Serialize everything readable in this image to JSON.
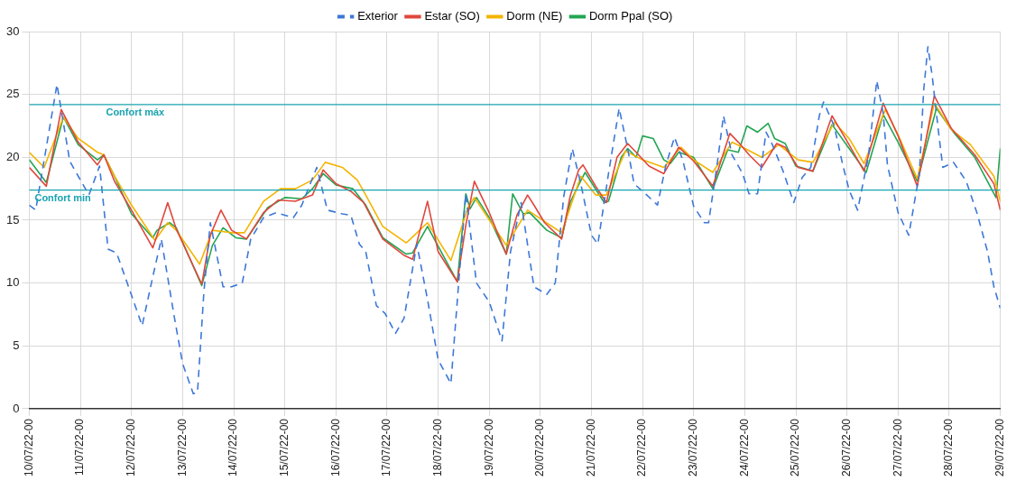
{
  "chart_data": {
    "type": "line",
    "xlim": [
      "--07-10T00:00",
      "--07-29T00:00"
    ],
    "xticks": [
      {
        "value": "--07-10T00:00",
        "label": "10/07/22-00"
      },
      {
        "value": "--07-11T00:00",
        "label": "11/07/22-00"
      },
      {
        "value": "--07-12T00:00",
        "label": "12/07/22-00"
      },
      {
        "value": "--07-13T00:00",
        "label": "13/07/22-00"
      },
      {
        "value": "--07-14T00:00",
        "label": "14/07/22-00"
      },
      {
        "value": "--07-15T00:00",
        "label": "15/07/22-00"
      },
      {
        "value": "--07-16T00:00",
        "label": "16/07/22-00"
      },
      {
        "value": "--07-17T00:00",
        "label": "17/07/22-00"
      },
      {
        "value": "--07-18T00:00",
        "label": "18/07/22-00"
      },
      {
        "value": "--07-19T00:00",
        "label": "19/07/22-00"
      },
      {
        "value": "--07-20T00:00",
        "label": "20/07/22-00"
      },
      {
        "value": "--07-21T00:00",
        "label": "21/07/22-00"
      },
      {
        "value": "--07-22T00:00",
        "label": "22/07/22-00"
      },
      {
        "value": "--07-23T00:00",
        "label": "23/07/22-00"
      },
      {
        "value": "--07-24T00:00",
        "label": "24/07/22-00"
      },
      {
        "value": "--07-25T00:00",
        "label": "25/07/22-00"
      },
      {
        "value": "--07-26T00:00",
        "label": "26/07/22-00"
      },
      {
        "value": "--07-27T00:00",
        "label": "27/07/22-00"
      },
      {
        "value": "--07-28T00:00",
        "label": "28/07/22-00"
      },
      {
        "value": "--07-29T00:00",
        "label": "29/07/22-00"
      }
    ],
    "ylim": [
      0,
      30
    ],
    "yticks": [
      0,
      5,
      10,
      15,
      20,
      25,
      30
    ],
    "grid": true,
    "legend": "top",
    "marker": "none",
    "ref_lines": [
      {
        "axis": "y",
        "value": 24.2,
        "label": "Confort máx",
        "color": "#1aa3b0"
      },
      {
        "axis": "y",
        "value": 17.4,
        "label": "Confort min",
        "color": "#1aa3b0"
      }
    ],
    "series": [
      {
        "name": "Exterior",
        "color": "#3d78d8",
        "line_style": "dashed",
        "x": [
          "--07-10T00:00",
          "--07-10T03:00",
          "--07-10T13:00",
          "--07-10T19:00",
          "--07-11T04:00",
          "--07-11T09:00",
          "--07-11T13:00",
          "--07-11T17:00",
          "--07-11T22:00",
          "--07-12T05:00",
          "--07-12T10:00",
          "--07-12T14:00",
          "--07-12T20:00",
          "--07-13T00:00",
          "--07-13T05:00",
          "--07-13T07:00",
          "--07-13T10:00",
          "--07-13T13:00",
          "--07-13T19:00",
          "--07-13T23:00",
          "--07-14T04:00",
          "--07-14T08:00",
          "--07-14T14:00",
          "--07-14T20:00",
          "--07-15T04:00",
          "--07-15T08:00",
          "--07-15T15:00",
          "--07-15T20:00",
          "--07-16T03:00",
          "--07-16T07:00",
          "--07-16T11:00",
          "--07-16T14:00",
          "--07-16T19:00",
          "--07-16T23:00",
          "--07-17T04:00",
          "--07-17T08:00",
          "--07-17T14:00",
          "--07-17T19:00",
          "--07-18T00:00",
          "--07-18T06:00",
          "--07-18T10:00",
          "--07-18T13:00",
          "--07-18T18:00",
          "--07-19T00:00",
          "--07-19T06:00",
          "--07-19T10:00",
          "--07-19T15:00",
          "--07-19T21:00",
          "--07-20T03:00",
          "--07-20T07:00",
          "--07-20T11:00",
          "--07-20T15:00",
          "--07-20T19:00",
          "--07-21T00:00",
          "--07-21T03:00",
          "--07-21T08:00",
          "--07-21T13:00",
          "--07-21T17:00",
          "--07-21T20:00",
          "--07-22T02:00",
          "--07-22T07:00",
          "--07-22T11:00",
          "--07-22T15:00",
          "--07-22T19:00",
          "--07-23T00:00",
          "--07-23T05:00",
          "--07-23T07:00",
          "--07-23T11:00",
          "--07-23T14:00",
          "--07-23T18:00",
          "--07-23T23:00",
          "--07-24T02:00",
          "--07-24T06:00",
          "--07-24T10:00",
          "--07-24T13:00",
          "--07-24T18:00",
          "--07-24T23:00",
          "--07-25T03:00",
          "--07-25T07:00",
          "--07-25T11:00",
          "--07-25T13:00",
          "--07-25T18:00",
          "--07-25T22:00",
          "--07-26T01:00",
          "--07-26T05:00",
          "--07-26T10:00",
          "--07-26T14:00",
          "--07-26T17:00",
          "--07-26T19:00",
          "--07-27T00:00",
          "--07-27T05:00",
          "--07-27T10:00",
          "--07-27T12:00",
          "--07-27T14:00",
          "--07-27T16:00",
          "--07-27T19:00",
          "--07-27T21:00",
          "--07-28T02:00",
          "--07-28T08:00",
          "--07-28T13:00",
          "--07-28T18:00",
          "--07-28T21:00",
          "--07-29T00:00"
        ],
        "values": [
          16.2,
          15.8,
          25.8,
          19.7,
          17,
          19.3,
          12.7,
          12.4,
          10,
          6.6,
          10.5,
          13.5,
          7.4,
          3.6,
          1.2,
          1.3,
          9.3,
          14.8,
          9.7,
          9.7,
          10,
          13.5,
          15.2,
          15.6,
          15.2,
          16.2,
          19.2,
          15.8,
          15.5,
          15.4,
          13.1,
          12.5,
          8.2,
          7.6,
          6,
          7.2,
          13.1,
          8.7,
          3.9,
          2,
          10.8,
          17.1,
          10,
          8.5,
          5.4,
          12.5,
          16.4,
          9.7,
          9.1,
          10,
          16.9,
          20.7,
          17.9,
          13.8,
          13.1,
          18.7,
          23.9,
          20.7,
          17.9,
          17,
          16.2,
          19.4,
          21.6,
          19.7,
          16.1,
          14.8,
          14.8,
          19.4,
          23.3,
          20.2,
          18.7,
          17.1,
          17.1,
          22,
          21,
          18.9,
          16.4,
          18.4,
          19.2,
          23.3,
          24.4,
          22.5,
          19.4,
          17.4,
          15.8,
          20,
          26.1,
          23.5,
          19.4,
          15.6,
          13.8,
          18.7,
          25.3,
          28.8,
          26.5,
          22,
          19.2,
          19.6,
          18.1,
          15.6,
          12.5,
          9.7,
          8
        ]
      },
      {
        "name": "Estar (SO)",
        "color": "#e0473c",
        "x": [
          "--07-10T00:00",
          "--07-10T08:00",
          "--07-10T15:00",
          "--07-10T23:00",
          "--07-11T08:00",
          "--07-11T11:00",
          "--07-11T16:00",
          "--07-12T00:00",
          "--07-12T10:00",
          "--07-12T13:00",
          "--07-12T17:00",
          "--07-12T21:00",
          "--07-13T09:00",
          "--07-13T13:00",
          "--07-13T18:00",
          "--07-13T23:00",
          "--07-14T06:00",
          "--07-14T14:00",
          "--07-14T21:00",
          "--07-15T05:00",
          "--07-15T13:00",
          "--07-15T18:00",
          "--07-16T00:00",
          "--07-16T07:00",
          "--07-16T13:00",
          "--07-16T22:00",
          "--07-17T08:00",
          "--07-17T12:00",
          "--07-17T19:00",
          "--07-18T00:00",
          "--07-18T09:00",
          "--07-18T13:00",
          "--07-18T17:00",
          "--07-19T00:00",
          "--07-19T08:00",
          "--07-19T13:00",
          "--07-19T18:00",
          "--07-19T21:00",
          "--07-20T02:00",
          "--07-20T10:00",
          "--07-20T14:00",
          "--07-20T18:00",
          "--07-20T20:00",
          "--07-21T02:00",
          "--07-21T07:00",
          "--07-21T12:00",
          "--07-21T17:00",
          "--07-21T21:00",
          "--07-22T03:00",
          "--07-22T10:00",
          "--07-22T17:00",
          "--07-23T00:00",
          "--07-23T09:00",
          "--07-23T17:00",
          "--07-23T21:00",
          "--07-24T02:00",
          "--07-24T08:00",
          "--07-24T15:00",
          "--07-24T19:00",
          "--07-25T01:00",
          "--07-25T08:00",
          "--07-25T17:00",
          "--07-26T01:00",
          "--07-26T08:00",
          "--07-26T17:00",
          "--07-27T00:00",
          "--07-27T09:00",
          "--07-27T17:00",
          "--07-28T01:00",
          "--07-28T12:00",
          "--07-28T21:00",
          "--07-29T00:00"
        ],
        "values": [
          19.2,
          17.7,
          23.8,
          21.2,
          19.4,
          20.2,
          18.1,
          15.8,
          12.8,
          14.3,
          16.4,
          14.3,
          9.9,
          13.8,
          15.8,
          14.2,
          13.5,
          15.6,
          16.6,
          16.5,
          17,
          19,
          17.9,
          17.3,
          16.4,
          13.5,
          12.2,
          11.9,
          16.5,
          12.5,
          10.1,
          14.6,
          18.1,
          15.6,
          12.3,
          15.4,
          17,
          16.2,
          14.8,
          13.5,
          16.9,
          19,
          19.4,
          17.7,
          16.4,
          20,
          21.1,
          20.4,
          19.3,
          18.7,
          20.8,
          19.7,
          17.7,
          21.9,
          21.2,
          20.2,
          19.2,
          21.1,
          20.8,
          19.2,
          18.9,
          23.3,
          21,
          18.9,
          24.3,
          21.7,
          17.7,
          24.9,
          22.3,
          20.2,
          17.9,
          15.8
        ]
      },
      {
        "name": "Dorm (NE)",
        "color": "#f4b400",
        "x": [
          "--07-10T00:00",
          "--07-10T07:00",
          "--07-10T16:00",
          "--07-10T23:00",
          "--07-11T08:00",
          "--07-11T11:00",
          "--07-11T16:00",
          "--07-12T00:00",
          "--07-12T11:00",
          "--07-12T17:00",
          "--07-12T21:00",
          "--07-13T08:00",
          "--07-13T14:00",
          "--07-13T23:00",
          "--07-14T05:00",
          "--07-14T14:00",
          "--07-14T22:00",
          "--07-15T05:00",
          "--07-15T13:00",
          "--07-15T19:00",
          "--07-16T03:00",
          "--07-16T10:00",
          "--07-16T14:00",
          "--07-16T22:00",
          "--07-17T09:00",
          "--07-17T11:00",
          "--07-17T19:00",
          "--07-18T06:00",
          "--07-18T14:00",
          "--07-18T17:00",
          "--07-19T08:00",
          "--07-19T18:00",
          "--07-20T10:00",
          "--07-20T15:00",
          "--07-20T19:00",
          "--07-21T02:00",
          "--07-21T07:00",
          "--07-21T16:00",
          "--07-22T00:00",
          "--07-22T10:00",
          "--07-22T18:00",
          "--07-23T00:00",
          "--07-23T09:00",
          "--07-23T18:00",
          "--07-23T23:00",
          "--07-24T08:00",
          "--07-24T16:00",
          "--07-25T01:00",
          "--07-25T08:00",
          "--07-25T18:00",
          "--07-26T01:00",
          "--07-26T08:00",
          "--07-26T18:00",
          "--07-27T00:00",
          "--07-27T09:00",
          "--07-27T17:00",
          "--07-28T01:00",
          "--07-28T10:00",
          "--07-28T21:00",
          "--07-29T00:00"
        ],
        "values": [
          20.4,
          19.2,
          23.2,
          21.5,
          20.4,
          20.2,
          18.5,
          16.2,
          13.4,
          14.8,
          14.2,
          11.5,
          14.2,
          14,
          14,
          16.5,
          17.5,
          17.5,
          18.2,
          19.6,
          19.2,
          18.2,
          17,
          14.5,
          13.2,
          13.5,
          14.8,
          11.8,
          16,
          16.8,
          13,
          15.8,
          14,
          16.5,
          18.5,
          17,
          17,
          20.5,
          19.8,
          19.2,
          20.8,
          19.8,
          18.8,
          21.2,
          20.8,
          20,
          21,
          19.8,
          19.6,
          22.8,
          21.5,
          19.5,
          23.8,
          21.8,
          18.3,
          24.3,
          22.2,
          21,
          18.5,
          16.5
        ]
      },
      {
        "name": "Dorm Ppal (SO)",
        "color": "#23a553",
        "x": [
          "--07-10T00:00",
          "--07-10T08:00",
          "--07-10T16:00",
          "--07-10T23:00",
          "--07-11T08:00",
          "--07-11T11:00",
          "--07-11T16:00",
          "--07-12T00:00",
          "--07-12T10:00",
          "--07-12T12:00",
          "--07-12T18:00",
          "--07-12T21:00",
          "--07-13T09:00",
          "--07-13T14:00",
          "--07-13T19:00",
          "--07-14T01:00",
          "--07-14T06:00",
          "--07-14T16:00",
          "--07-15T00:00",
          "--07-15T08:00",
          "--07-15T13:00",
          "--07-15T18:00",
          "--07-16T00:00",
          "--07-16T08:00",
          "--07-16T14:00",
          "--07-16T22:00",
          "--07-17T09:00",
          "--07-17T12:00",
          "--07-17T19:00",
          "--07-18T09:00",
          "--07-18T13:00",
          "--07-18T15:00",
          "--07-18T18:00",
          "--07-19T00:00",
          "--07-19T08:00",
          "--07-19T11:00",
          "--07-19T16:00",
          "--07-19T19:00",
          "--07-20T03:00",
          "--07-20T10:00",
          "--07-20T14:00",
          "--07-20T18:00",
          "--07-20T21:00",
          "--07-21T06:00",
          "--07-21T08:00",
          "--07-21T14:00",
          "--07-21T17:00",
          "--07-21T21:00",
          "--07-22T00:00",
          "--07-22T05:00",
          "--07-22T10:00",
          "--07-22T13:00",
          "--07-22T17:00",
          "--07-23T00:00",
          "--07-23T09:00",
          "--07-23T16:00",
          "--07-23T21:00",
          "--07-24T01:00",
          "--07-24T06:00",
          "--07-24T11:00",
          "--07-24T14:00",
          "--07-24T19:00",
          "--07-25T00:00",
          "--07-25T08:00",
          "--07-25T17:00",
          "--07-26T01:00",
          "--07-26T09:00",
          "--07-26T17:00",
          "--07-27T00:00",
          "--07-27T09:00",
          "--07-27T18:00",
          "--07-28T02:00",
          "--07-28T12:00",
          "--07-28T22:00",
          "--07-29T00:00"
        ],
        "values": [
          19.8,
          18,
          23.2,
          21,
          19.8,
          20.2,
          18.5,
          15.5,
          13.6,
          14.2,
          14.8,
          14.4,
          9.8,
          13,
          14.4,
          13.6,
          13.5,
          16,
          16.8,
          16.7,
          17.5,
          18.7,
          17.8,
          17.5,
          16.2,
          13.6,
          12.3,
          12.4,
          14.5,
          10.1,
          17.1,
          15.9,
          16.8,
          15.2,
          12.3,
          17.1,
          15.5,
          15.6,
          14.2,
          13.6,
          16.4,
          17.8,
          18.8,
          16.4,
          16.5,
          20,
          20.7,
          20,
          21.7,
          21.5,
          19.8,
          19.5,
          20.4,
          20,
          17.5,
          20.6,
          20.4,
          22.5,
          22,
          22.7,
          21.5,
          21.1,
          19.3,
          18.9,
          22.6,
          20.7,
          18.8,
          23.4,
          21.2,
          18.1,
          23.9,
          22,
          20,
          16.8,
          20.7
        ]
      }
    ]
  }
}
